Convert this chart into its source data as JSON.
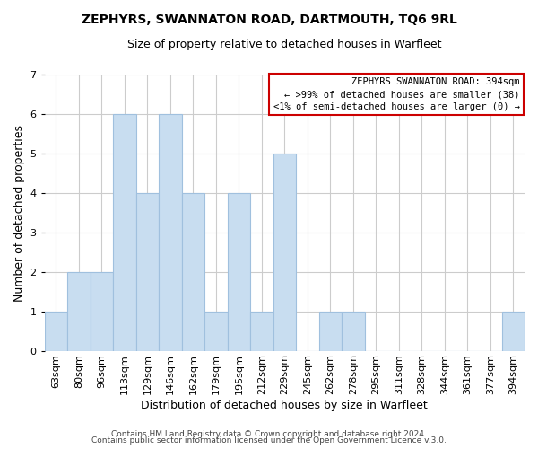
{
  "title": "ZEPHYRS, SWANNATON ROAD, DARTMOUTH, TQ6 9RL",
  "subtitle": "Size of property relative to detached houses in Warfleet",
  "xlabel": "Distribution of detached houses by size in Warfleet",
  "ylabel": "Number of detached properties",
  "categories": [
    "63sqm",
    "80sqm",
    "96sqm",
    "113sqm",
    "129sqm",
    "146sqm",
    "162sqm",
    "179sqm",
    "195sqm",
    "212sqm",
    "229sqm",
    "245sqm",
    "262sqm",
    "278sqm",
    "295sqm",
    "311sqm",
    "328sqm",
    "344sqm",
    "361sqm",
    "377sqm",
    "394sqm"
  ],
  "values": [
    1,
    2,
    2,
    6,
    4,
    6,
    4,
    1,
    4,
    1,
    5,
    0,
    1,
    1,
    0,
    0,
    0,
    0,
    0,
    0,
    1
  ],
  "bar_color": "#c8ddf0",
  "bar_edge_color": "#a0c0de",
  "ylim": [
    0,
    7
  ],
  "yticks": [
    0,
    1,
    2,
    3,
    4,
    5,
    6,
    7
  ],
  "legend_box_text1": "ZEPHYRS SWANNATON ROAD: 394sqm",
  "legend_box_text2": "← >99% of detached houses are smaller (38)",
  "legend_box_text3": "<1% of semi-detached houses are larger (0) →",
  "legend_box_edgecolor": "#cc0000",
  "legend_box_facecolor": "#ffffff",
  "footer1": "Contains HM Land Registry data © Crown copyright and database right 2024.",
  "footer2": "Contains public sector information licensed under the Open Government Licence v.3.0.",
  "background_color": "#ffffff",
  "grid_color": "#cccccc",
  "title_fontsize": 10,
  "subtitle_fontsize": 9,
  "axis_label_fontsize": 9,
  "tick_fontsize": 8,
  "footer_fontsize": 6.5
}
